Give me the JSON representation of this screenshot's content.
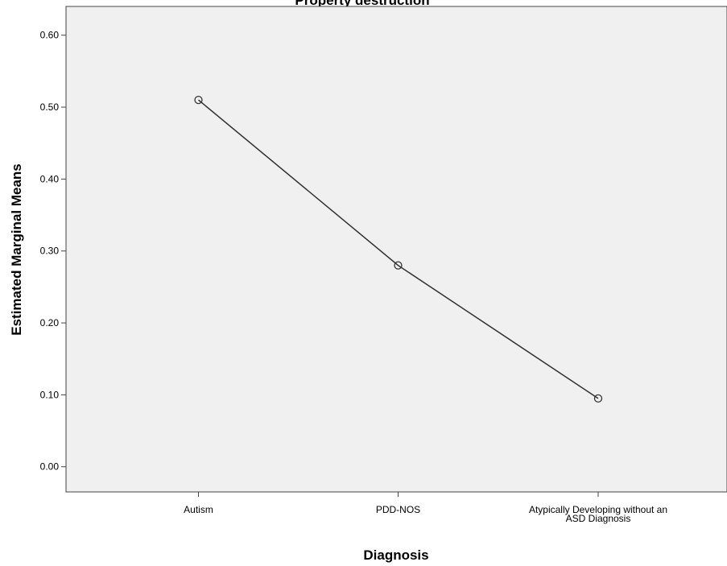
{
  "chart_data": {
    "type": "line",
    "title": "Property destruction",
    "xlabel": "Diagnosis",
    "ylabel": "Estimated Marginal Means",
    "categories": [
      "Autism",
      "PDD-NOS",
      "Atypically Developing without an ASD Diagnosis"
    ],
    "category_display_lines": [
      [
        "Autism"
      ],
      [
        "PDD-NOS"
      ],
      [
        "Atypically Developing without an",
        "ASD Diagnosis"
      ]
    ],
    "series": [
      {
        "values": [
          0.51,
          0.28,
          0.095
        ]
      }
    ],
    "ylim": [
      -0.035,
      0.64
    ],
    "yticks": [
      0.0,
      0.1,
      0.2,
      0.3,
      0.4,
      0.5,
      0.6
    ],
    "ytick_labels": [
      "0.00",
      "0.10",
      "0.20",
      "0.30",
      "0.40",
      "0.50",
      "0.60"
    ],
    "grid": false,
    "plot_background": "#f0f0f0",
    "line_color": "#333333",
    "marker": "open-circle"
  }
}
